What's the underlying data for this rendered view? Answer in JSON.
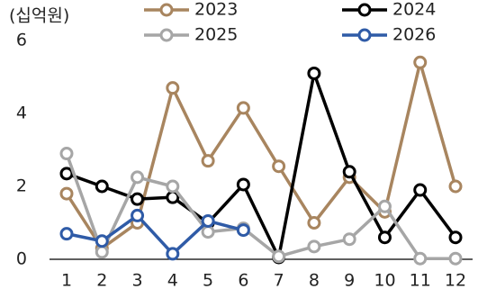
{
  "chart_data": {
    "type": "line",
    "unit_label": "(십억원)",
    "categories": [
      "1",
      "2",
      "3",
      "4",
      "5",
      "6",
      "7",
      "8",
      "9",
      "10",
      "11",
      "12"
    ],
    "series": [
      {
        "name": "2023",
        "color": "#A8855F",
        "values": [
          1.8,
          0.3,
          1.0,
          4.7,
          2.7,
          4.15,
          2.55,
          1.0,
          2.25,
          1.3,
          5.4,
          2.0
        ]
      },
      {
        "name": "2024",
        "color": "#000000",
        "values": [
          2.35,
          2.0,
          1.65,
          1.7,
          1.0,
          2.05,
          0.05,
          5.1,
          2.4,
          0.6,
          1.9,
          0.6
        ]
      },
      {
        "name": "2025",
        "color": "#A6A6A6",
        "values": [
          2.9,
          0.2,
          2.25,
          2.0,
          0.75,
          0.85,
          0.08,
          0.35,
          0.55,
          1.45,
          0.02,
          0.02
        ]
      },
      {
        "name": "2026",
        "color": "#2F5BA7",
        "values": [
          0.7,
          0.5,
          1.2,
          0.15,
          1.05,
          0.8,
          null,
          null,
          null,
          null,
          null,
          null
        ]
      }
    ],
    "ylim": [
      0,
      6
    ],
    "yticks": [
      0,
      2,
      4,
      6
    ],
    "grid": false
  }
}
